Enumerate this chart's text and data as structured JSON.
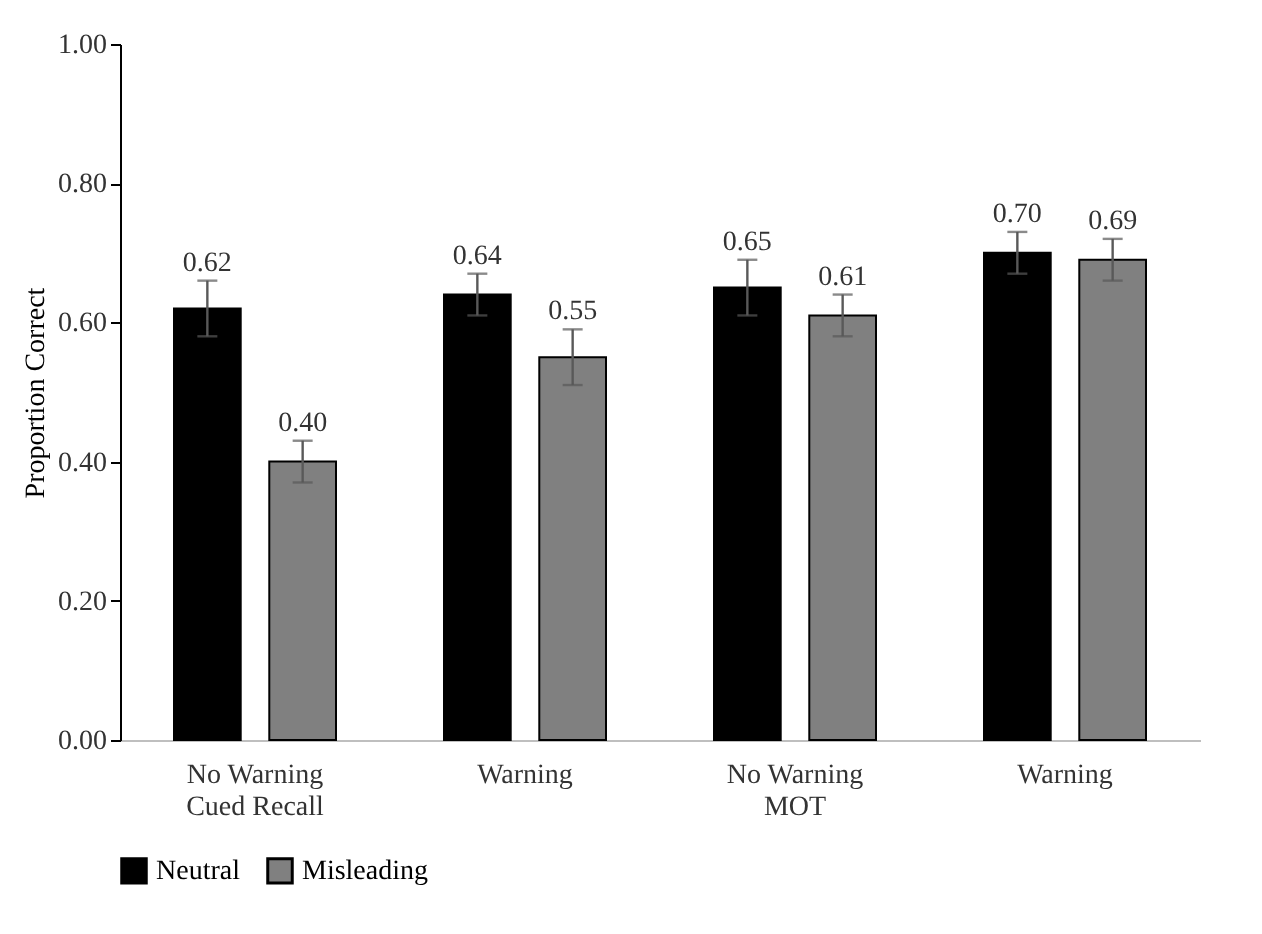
{
  "chart_data": {
    "type": "bar",
    "ylabel": "Proportion Correct",
    "categories": [
      "No Warning\nCued Recall",
      "Warning",
      "No Warning\nMOT",
      "Warning"
    ],
    "series": [
      {
        "name": "Neutral",
        "color": "#000000",
        "values": [
          0.62,
          0.64,
          0.65,
          0.7
        ],
        "errors": [
          0.04,
          0.03,
          0.04,
          0.03
        ],
        "value_labels": [
          "0.62",
          "0.64",
          "0.65",
          "0.70"
        ]
      },
      {
        "name": "Misleading",
        "color": "#808080",
        "values": [
          0.4,
          0.55,
          0.61,
          0.69
        ],
        "errors": [
          0.03,
          0.04,
          0.03,
          0.03
        ],
        "value_labels": [
          "0.40",
          "0.55",
          "0.61",
          "0.69"
        ]
      }
    ],
    "ylim": [
      0,
      1
    ],
    "yticks": [
      {
        "value": 0,
        "label": "0.00"
      },
      {
        "value": 0.2,
        "label": "0.20"
      },
      {
        "value": 0.4,
        "label": "0.40"
      },
      {
        "value": 0.6,
        "label": "0.60"
      },
      {
        "value": 0.8,
        "label": "0.80"
      },
      {
        "value": 1,
        "label": "1.00"
      }
    ],
    "grid": false,
    "legend": "bottom"
  }
}
